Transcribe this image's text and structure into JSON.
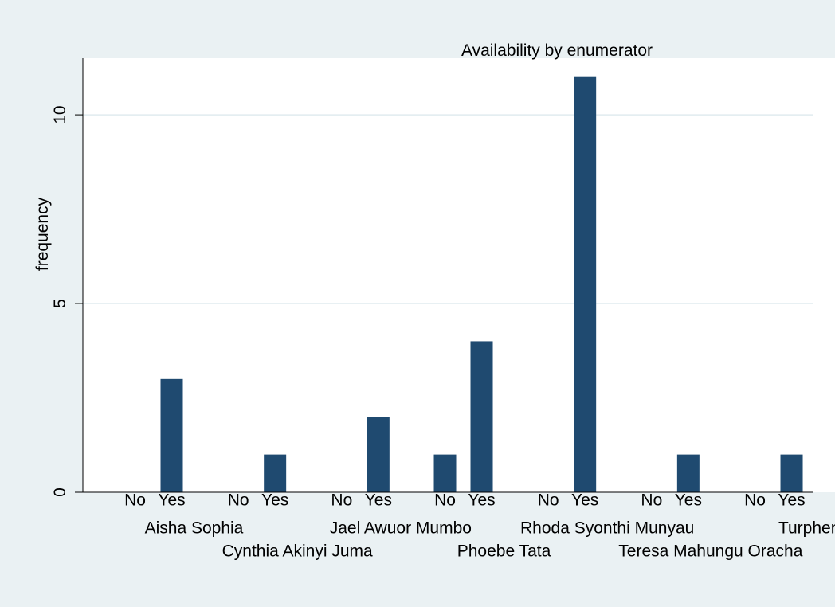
{
  "chart_data": {
    "type": "bar",
    "title": "Availability by enumerator",
    "ylabel": "frequency",
    "ylim": [
      0,
      11.5
    ],
    "yticks": [
      0,
      5,
      10
    ],
    "grid": true,
    "bar_color": "#1f4a70",
    "background": "#eaf1f3",
    "plot_background": "#ffffff",
    "sub_categories": [
      "No",
      "Yes"
    ],
    "groups": [
      {
        "label": "Aisha Sophia",
        "values": [
          0,
          3
        ]
      },
      {
        "label": "Cynthia Akinyi Juma",
        "values": [
          0,
          1
        ]
      },
      {
        "label": "Jael Awuor Mumbo",
        "values": [
          0,
          2
        ]
      },
      {
        "label": "Phoebe Tata",
        "values": [
          1,
          4
        ]
      },
      {
        "label": "Rhoda Syonthi Munyau",
        "values": [
          0,
          11
        ]
      },
      {
        "label": "Teresa Mahungu Oracha",
        "values": [
          0,
          1
        ]
      },
      {
        "label": "Turphena",
        "values": [
          0,
          1
        ]
      }
    ]
  }
}
